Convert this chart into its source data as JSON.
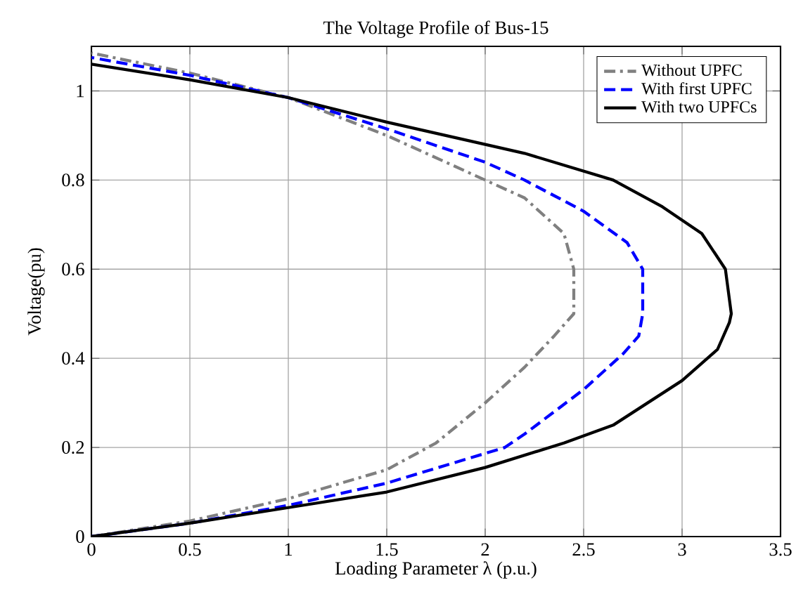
{
  "chart_data": {
    "type": "line",
    "title": "The Voltage Profile of Bus-15",
    "xlabel": "Loading Parameter λ (p.u.)",
    "ylabel": "Voltage(pu)",
    "xlim": [
      0,
      3.5
    ],
    "ylim": [
      0,
      1.1
    ],
    "xticks": [
      0,
      0.5,
      1,
      1.5,
      2,
      2.5,
      3,
      3.5
    ],
    "yticks": [
      0,
      0.2,
      0.4,
      0.6,
      0.8,
      1
    ],
    "grid": true,
    "legend": "top right",
    "marker": "none",
    "series": [
      {
        "name": "Without UPFC",
        "color": "#808080",
        "line_style": "dashdot",
        "x": [
          0,
          0.5,
          1,
          1.5,
          1.75,
          2,
          2.2,
          2.35,
          2.45,
          2.45,
          2.4,
          2.2,
          2,
          1.5,
          1,
          0.5,
          0
        ],
        "values": [
          0,
          0.035,
          0.085,
          0.15,
          0.21,
          0.3,
          0.38,
          0.45,
          0.5,
          0.6,
          0.68,
          0.76,
          0.8,
          0.9,
          0.985,
          1.04,
          1.085
        ]
      },
      {
        "name": "With first UPFC",
        "color": "#0000ff",
        "line_style": "dashed",
        "x": [
          0,
          0.5,
          1,
          1.5,
          1.8,
          2.1,
          2.2,
          2.5,
          2.7,
          2.78,
          2.8,
          2.8,
          2.72,
          2.5,
          2.2,
          2,
          1.5,
          1,
          0.5,
          0
        ],
        "values": [
          0,
          0.03,
          0.07,
          0.12,
          0.16,
          0.2,
          0.23,
          0.33,
          0.41,
          0.45,
          0.5,
          0.6,
          0.66,
          0.73,
          0.8,
          0.84,
          0.915,
          0.985,
          1.035,
          1.075
        ]
      },
      {
        "name": "With two UPFCs",
        "color": "#000000",
        "line_style": "solid",
        "x": [
          0,
          0.5,
          1,
          1.5,
          2,
          2.4,
          2.65,
          3,
          3.18,
          3.24,
          3.25,
          3.22,
          3.1,
          2.9,
          2.65,
          2.2,
          2,
          1.5,
          1,
          0.5,
          0
        ],
        "values": [
          0,
          0.03,
          0.065,
          0.1,
          0.155,
          0.21,
          0.25,
          0.35,
          0.42,
          0.48,
          0.5,
          0.6,
          0.68,
          0.74,
          0.8,
          0.86,
          0.88,
          0.93,
          0.985,
          1.025,
          1.06
        ]
      }
    ]
  }
}
